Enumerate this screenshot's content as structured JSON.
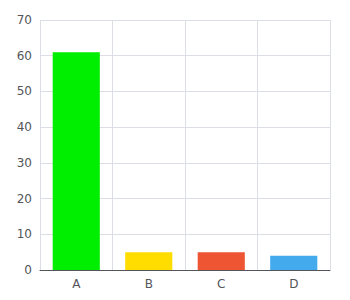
{
  "chart_data": {
    "type": "bar",
    "categories": [
      "A",
      "B",
      "C",
      "D"
    ],
    "values": [
      61,
      5,
      5,
      4
    ],
    "colors": [
      "#00ee00",
      "#ffdd00",
      "#ee5533",
      "#44aaee"
    ],
    "ylim": [
      0,
      70
    ],
    "yticks": [
      0,
      10,
      20,
      30,
      40,
      50,
      60,
      70
    ],
    "grid": true
  }
}
